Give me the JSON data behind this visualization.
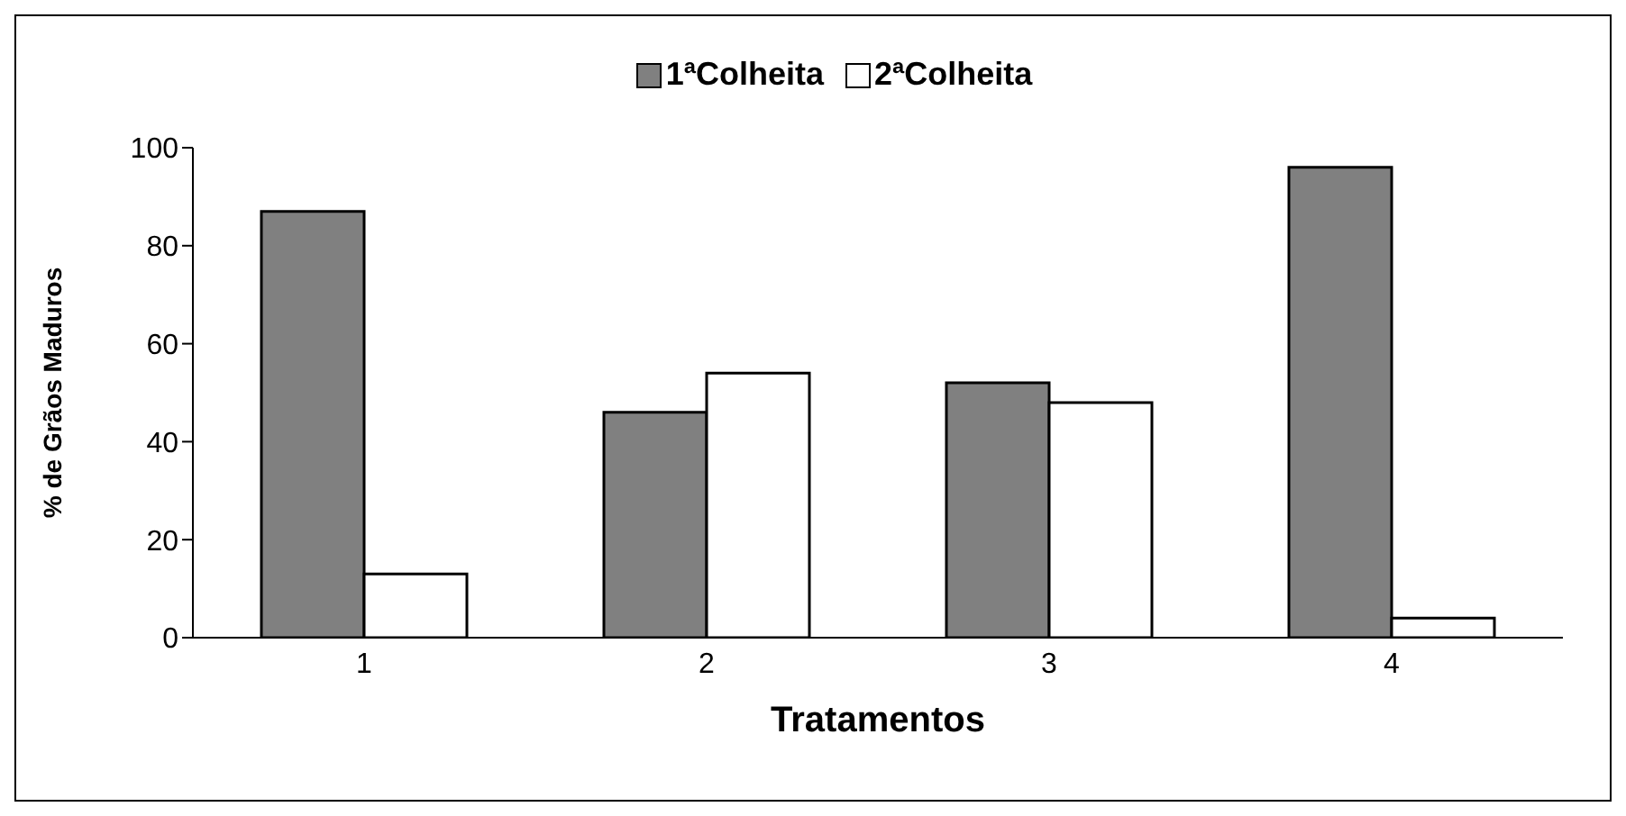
{
  "chart_data": {
    "type": "bar",
    "xlabel": "Tratamentos",
    "ylabel": "% de Grãos Maduros",
    "categories": [
      "1",
      "2",
      "3",
      "4"
    ],
    "series": [
      {
        "name": "1ªColheita",
        "color": "#808080",
        "values": [
          87,
          46,
          52,
          96
        ]
      },
      {
        "name": "2ªColheita",
        "color": "#ffffff",
        "values": [
          13,
          54,
          48,
          4
        ]
      }
    ],
    "ylim": [
      0,
      100
    ],
    "yticks": [
      0,
      20,
      40,
      60,
      80,
      100
    ],
    "grid": false,
    "legend": "top"
  }
}
